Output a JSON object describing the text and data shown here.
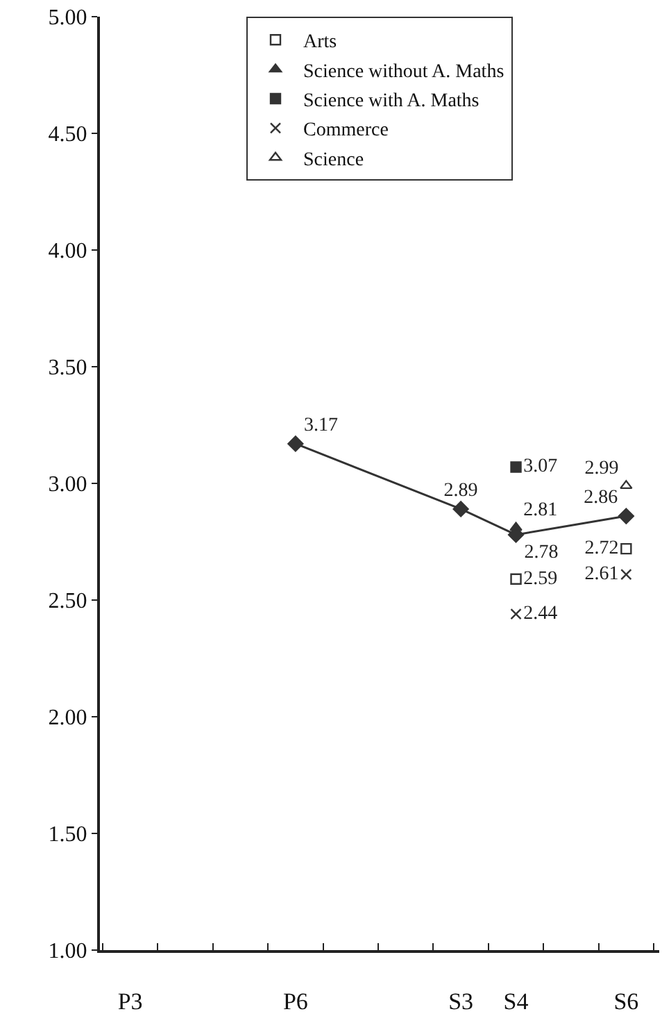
{
  "chart_data": {
    "type": "line",
    "categories": [
      "P3",
      null,
      null,
      "P6",
      null,
      null,
      "S3",
      "S4",
      null,
      "S6"
    ],
    "ylim": [
      1,
      5
    ],
    "yticks": [
      {
        "value": 1,
        "label": "1.00"
      },
      {
        "value": 1.5,
        "label": "1.50"
      },
      {
        "value": 2,
        "label": "2.00"
      },
      {
        "value": 2.5,
        "label": "2.50"
      },
      {
        "value": 3,
        "label": "3.00"
      },
      {
        "value": 3.5,
        "label": "3.50"
      },
      {
        "value": 4,
        "label": "4.00"
      },
      {
        "value": 4.5,
        "label": "4.50"
      },
      {
        "value": 5,
        "label": "5.00"
      }
    ],
    "grid": false,
    "legend": "top",
    "data_labels": true,
    "series": [
      {
        "color": "#333333",
        "marker": "diamond",
        "x": [
          "P6",
          "S3",
          "S4",
          "S6"
        ],
        "values": [
          3.17,
          2.89,
          2.78,
          2.86
        ]
      },
      {
        "type": "scatter",
        "name": "Arts",
        "color": "#333333",
        "marker": "square-open",
        "x": [
          "S4",
          "S6"
        ],
        "values": [
          2.59,
          2.72
        ]
      },
      {
        "type": "scatter",
        "name": "Science without A. Maths",
        "color": "#333333",
        "marker": "triangle",
        "x": [
          "S4"
        ],
        "values": [
          2.81
        ]
      },
      {
        "type": "scatter",
        "name": "Science with A. Maths",
        "color": "#333333",
        "marker": "square",
        "x": [
          "S4"
        ],
        "values": [
          3.07
        ]
      },
      {
        "type": "scatter",
        "name": "Commerce",
        "color": "#333333",
        "marker": "cross",
        "x": [
          "S4",
          "S6"
        ],
        "values": [
          2.44,
          2.61
        ]
      },
      {
        "type": "scatter",
        "name": "Science",
        "color": "#333333",
        "marker": "triangle-open",
        "x": [
          "S6"
        ],
        "values": [
          2.99
        ]
      }
    ]
  }
}
